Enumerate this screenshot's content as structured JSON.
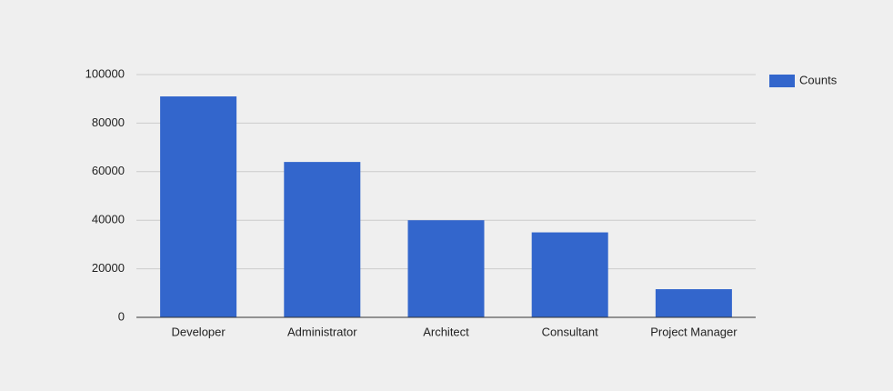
{
  "chart_data": {
    "type": "bar",
    "categories": [
      "Developer",
      "Administrator",
      "Architect",
      "Consultant",
      "Project Manager"
    ],
    "series": [
      {
        "name": "Counts",
        "color": "#3366cc",
        "values": [
          91000,
          64000,
          40000,
          35000,
          11600
        ]
      }
    ],
    "ylim": [
      0,
      100000
    ],
    "yticks": [
      0,
      20000,
      40000,
      60000,
      80000,
      100000
    ],
    "grid": true,
    "legend": "right"
  }
}
